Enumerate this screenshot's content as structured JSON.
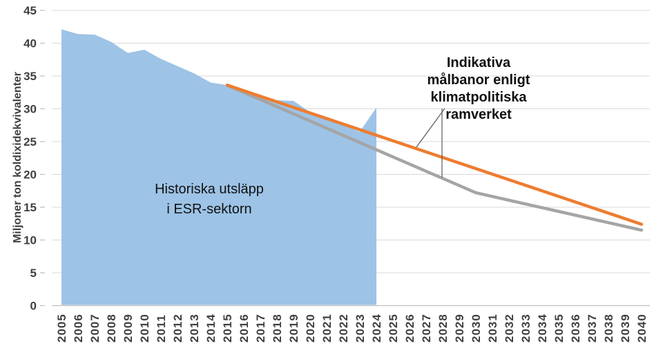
{
  "chart": {
    "y_axis": {
      "label": "Miljoner ton koldixidekvivalenter",
      "ticks": [
        0,
        5,
        10,
        15,
        20,
        25,
        30,
        35,
        40,
        45
      ],
      "range": [
        0,
        45
      ]
    },
    "x_axis": {
      "years": [
        2005,
        2006,
        2007,
        2008,
        2009,
        2010,
        2011,
        2012,
        2013,
        2014,
        2015,
        2016,
        2017,
        2018,
        2019,
        2020,
        2021,
        2022,
        2023,
        2024,
        2025,
        2026,
        2027,
        2028,
        2029,
        2030,
        2031,
        2032,
        2033,
        2034,
        2035,
        2036,
        2037,
        2038,
        2039,
        2040
      ]
    },
    "area_label": {
      "lines": [
        "Historiska utsläpp",
        "i ESR-sektorn"
      ]
    },
    "annotation": {
      "lines": [
        "Indikativa",
        "målbanor enligt",
        "klimatpolitiska",
        "ramverket"
      ]
    },
    "colors": {
      "historical_area": "#9DC3E6",
      "target_line_orange": "#ED7D31",
      "target_line_gray": "#A5A5A5",
      "gridline": "#D9D9D9",
      "axis_line": "#BFBFBF",
      "tick_mark": "#BFBFBF",
      "axis_text": "#404040",
      "label_text": "#111111",
      "leader_line": "#595959"
    }
  },
  "chart_data": {
    "type": "area",
    "title": "",
    "xlabel": "",
    "ylabel": "Miljoner ton koldixidekvivalenter",
    "xlim": [
      2005,
      2040
    ],
    "ylim": [
      0,
      45
    ],
    "grid": "horizontal",
    "legend": "none",
    "series": [
      {
        "name": "Historiska utsläpp i ESR-sektorn",
        "type": "area",
        "color": "#9DC3E6",
        "x": [
          2005,
          2006,
          2007,
          2008,
          2009,
          2010,
          2011,
          2012,
          2013,
          2014,
          2015,
          2016,
          2017,
          2018,
          2019,
          2020,
          2021,
          2022,
          2023,
          2024
        ],
        "values": [
          42.1,
          41.4,
          41.3,
          40.2,
          38.5,
          39.0,
          37.6,
          36.5,
          35.4,
          34.0,
          33.6,
          32.6,
          31.8,
          31.3,
          31.2,
          29.5,
          28.4,
          27.5,
          26.5,
          30.2
        ]
      },
      {
        "name": "Indikativ målbana enligt klimatpolitiska ramverket (orange)",
        "type": "line",
        "color": "#ED7D31",
        "x": [
          2015,
          2040
        ],
        "values": [
          33.6,
          12.4
        ]
      },
      {
        "name": "Indikativ målbana enligt klimatpolitiska ramverket (grå)",
        "type": "line",
        "color": "#A5A5A5",
        "x": [
          2015,
          2030,
          2040
        ],
        "values": [
          33.6,
          17.2,
          11.5
        ]
      }
    ]
  }
}
